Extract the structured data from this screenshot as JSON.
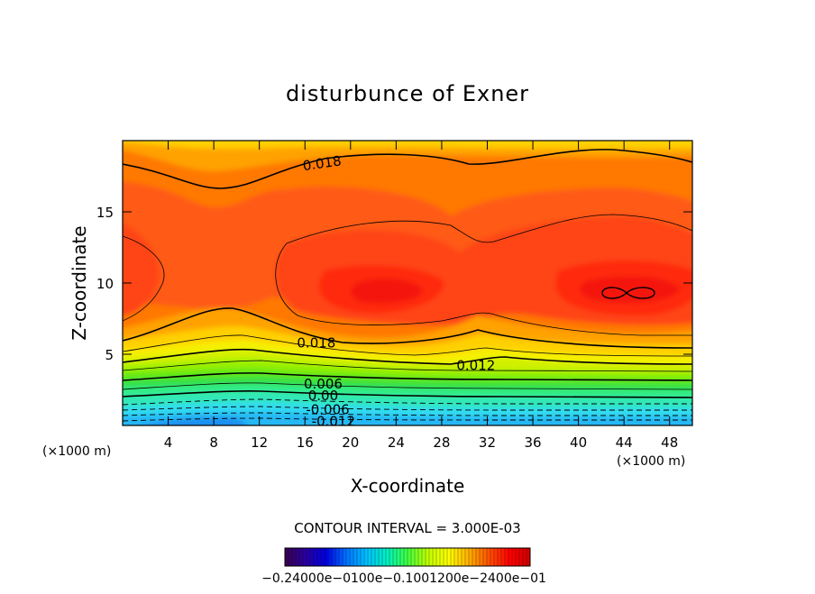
{
  "chart_data": {
    "type": "heatmap",
    "subtype": "filled-contour",
    "title": "disturbunce of Exner",
    "xlabel": "X-coordinate",
    "ylabel": "Z-coordinate",
    "x_unit_left": "(×1000 m)",
    "x_unit_right": "(×1000 m)",
    "xlim": [
      0,
      50
    ],
    "ylim": [
      0,
      20
    ],
    "x_ticks": [
      4,
      8,
      12,
      16,
      20,
      24,
      28,
      32,
      36,
      40,
      44,
      48
    ],
    "x_tick_labels": [
      "4",
      "8",
      "12",
      "16",
      "20",
      "24",
      "28",
      "32",
      "36",
      "40",
      "44",
      "48"
    ],
    "y_ticks": [
      5,
      10,
      15
    ],
    "y_tick_labels": [
      "5",
      "10",
      "15"
    ],
    "contour_interval_text": "CONTOUR INTERVAL = 3.000E-03",
    "contour_labels": [
      {
        "text": "0.018",
        "x": 17.5,
        "y": 18.4
      },
      {
        "text": "0.018",
        "x": 17.0,
        "y": 5.8
      },
      {
        "text": "0.012",
        "x": 31.0,
        "y": 4.2
      },
      {
        "text": "0.006",
        "x": 17.6,
        "y": 2.9
      },
      {
        "text": "0.00",
        "x": 17.6,
        "y": 2.1
      },
      {
        "text": "-0.006",
        "x": 18.0,
        "y": 1.1
      },
      {
        "text": "-0.012",
        "x": 18.5,
        "y": 0.3
      }
    ],
    "colorbar": {
      "label_text": "−0.24000e−0100e−0.1001200e−2400e−01",
      "colors": [
        "#3a004f",
        "#2a00a0",
        "#0000e0",
        "#0070ff",
        "#00c0ff",
        "#00f0c0",
        "#40ff40",
        "#c0ff00",
        "#ffff00",
        "#ffb000",
        "#ff5000",
        "#ff0000",
        "#d00000"
      ]
    },
    "fill_colors": {
      "c1": "#1e8ef0",
      "c2": "#28b8f4",
      "c3": "#30dcf0",
      "c4": "#30e8b8",
      "c5": "#30ec88",
      "c6": "#34e044",
      "c7": "#60e818",
      "c8": "#98f000",
      "c9": "#d0f000",
      "c10": "#f6f000",
      "c11": "#ffd000",
      "c12": "#ffa200",
      "c13": "#ff7800",
      "c14": "#ff5a12",
      "c15": "#ff4418",
      "c16": "#ff2a10",
      "c17": "#f41208"
    }
  }
}
